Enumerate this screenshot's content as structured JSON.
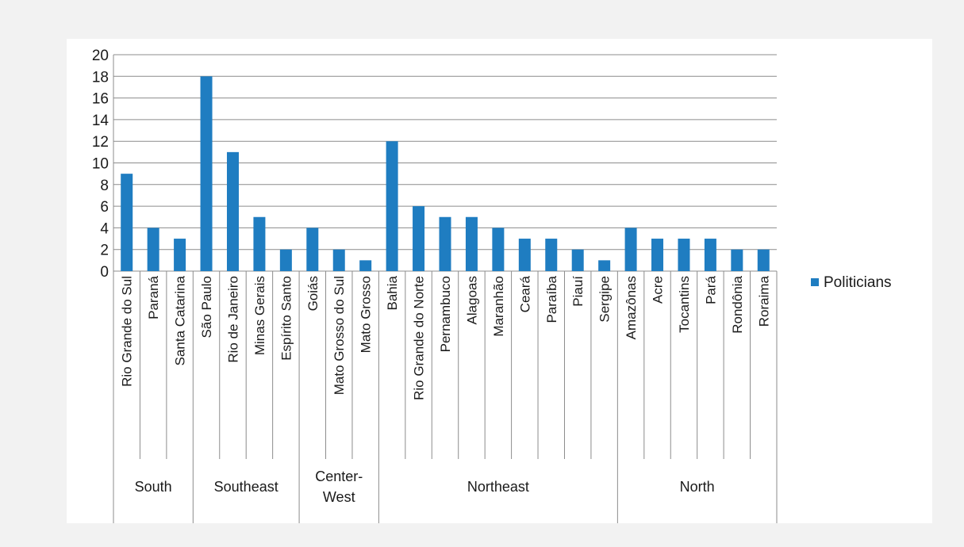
{
  "chart_data": {
    "type": "bar",
    "title": "",
    "xlabel": "",
    "ylabel": "",
    "ylim": [
      0,
      20
    ],
    "yticks": [
      0,
      2,
      4,
      6,
      8,
      10,
      12,
      14,
      16,
      18,
      20
    ],
    "grid": true,
    "legend_position": "right",
    "bar_color": "#1f7dc1",
    "categories": [
      "Rio Grande do Sul",
      "Paraná",
      "Santa Catarina",
      "São Paulo",
      "Rio de Janeiro",
      "Minas Gerais",
      "Espírito Santo",
      "Goiás",
      "Mato Grosso do Sul",
      "Mato Grosso",
      "Bahia",
      "Rio Grande do Norte",
      "Pernambuco",
      "Alagoas",
      "Maranhão",
      "Ceará",
      "Paraíba",
      "Piauí",
      "Sergipe",
      "Amazônas",
      "Acre",
      "Tocantins",
      "Pará",
      "Rondônia",
      "Roraima"
    ],
    "groups": [
      {
        "label_lines": [
          "South"
        ],
        "count": 3
      },
      {
        "label_lines": [
          "Southeast"
        ],
        "count": 4
      },
      {
        "label_lines": [
          "Center-",
          "West"
        ],
        "count": 3
      },
      {
        "label_lines": [
          "Northeast"
        ],
        "count": 9
      },
      {
        "label_lines": [
          "North"
        ],
        "count": 6
      }
    ],
    "series": [
      {
        "name": "Politicians",
        "values": [
          9,
          4,
          3,
          18,
          11,
          5,
          2,
          4,
          2,
          1,
          12,
          6,
          5,
          5,
          4,
          3,
          3,
          2,
          1,
          4,
          3,
          3,
          3,
          2,
          2
        ]
      }
    ]
  }
}
